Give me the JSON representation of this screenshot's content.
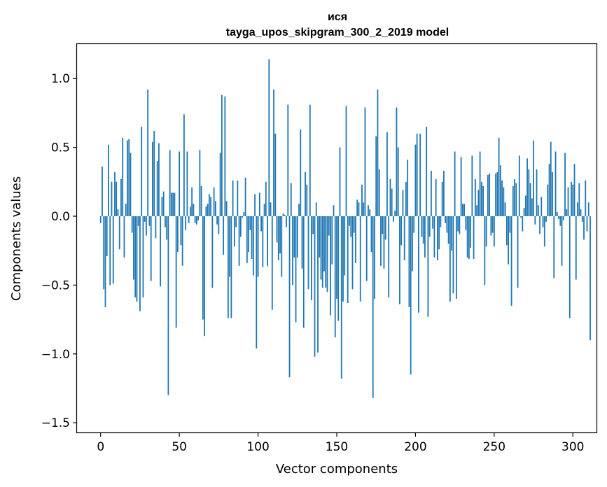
{
  "chart_data": {
    "type": "bar",
    "title": "ися",
    "subtitle": "tayga_upos_skipgram_300_2_2019 model",
    "xlabel": "Vector components",
    "ylabel": "Components values",
    "xlim": [
      -15,
      315
    ],
    "ylim": [
      -1.57,
      1.25
    ],
    "xticks": [
      0,
      50,
      100,
      150,
      200,
      250,
      300
    ],
    "xtick_labels": [
      "0",
      "50",
      "100",
      "150",
      "200",
      "250",
      "300"
    ],
    "yticks": [
      -1.5,
      -1.0,
      -0.5,
      0.0,
      0.5,
      1.0
    ],
    "ytick_labels": [
      "−1.5",
      "−1.0",
      "−0.5",
      "0.0",
      "0.5",
      "1.0"
    ],
    "bar_color": "#1f77b4",
    "grid": false,
    "values": [
      -0.05,
      0.36,
      -0.53,
      -0.66,
      -0.29,
      0.52,
      -0.5,
      0.25,
      -0.49,
      0.32,
      0.25,
      0.05,
      -0.24,
      0.27,
      0.57,
      -0.3,
      0.09,
      0.55,
      0.56,
      0.46,
      -0.12,
      -0.46,
      -0.59,
      -0.62,
      -0.07,
      -0.69,
      0.65,
      -0.59,
      -0.04,
      -0.14,
      0.92,
      -0.07,
      -0.47,
      0.54,
      0.62,
      -0.16,
      0.4,
      0.53,
      -0.51,
      0.14,
      0.18,
      -0.08,
      -0.17,
      -1.3,
      0.48,
      0.17,
      0.17,
      0.17,
      -0.81,
      -0.26,
      0.47,
      -0.21,
      -0.36,
      0.74,
      -0.1,
      0.47,
      -0.05,
      0.07,
      0.21,
      0.09,
      -0.05,
      -0.06,
      -0.03,
      0.48,
      0.22,
      -0.75,
      -0.87,
      0.07,
      0.09,
      0.16,
      0.14,
      -0.52,
      0.21,
      0.11,
      -0.06,
      -0.13,
      0.46,
      0.88,
      -0.28,
      0.87,
      0.11,
      -0.74,
      -0.44,
      -0.74,
      0.26,
      -0.22,
      -0.08,
      0.26,
      -0.36,
      -0.15,
      -0.01,
      0.03,
      0.28,
      -0.34,
      -0.26,
      -0.1,
      -0.31,
      -0.43,
      0.16,
      -0.96,
      -0.44,
      0.17,
      -0.11,
      -0.37,
      0.09,
      0.25,
      -0.36,
      1.14,
      0.1,
      -0.68,
      0.92,
      0.6,
      -0.19,
      -0.32,
      -0.27,
      -0.44,
      0.02,
      0.01,
      -0.08,
      0.81,
      -1.17,
      0.24,
      -0.5,
      -0.3,
      -0.77,
      -0.3,
      0.09,
      0.63,
      -0.38,
      -0.81,
      0.32,
      0.23,
      -0.53,
      0.81,
      -0.61,
      -0.13,
      -1.02,
      0.1,
      -0.99,
      -0.3,
      -0.46,
      -0.52,
      -0.4,
      -0.52,
      -0.55,
      -0.14,
      -0.72,
      -0.35,
      0.08,
      -0.88,
      -0.6,
      -0.76,
      0.5,
      -1.18,
      -0.62,
      -0.43,
      0.8,
      -0.63,
      -0.07,
      -0.15,
      -0.53,
      -0.12,
      -0.34,
      0.12,
      0.1,
      -0.62,
      0.23,
      0.1,
      0.79,
      -0.47,
      0.08,
      0.05,
      -0.26,
      -1.32,
      -0.6,
      0.58,
      0.92,
      0.34,
      -0.36,
      -0.13,
      -0.38,
      -0.17,
      0.61,
      -0.59,
      0.27,
      0.2,
      -0.04,
      0.04,
      0.79,
      0.5,
      -0.64,
      -0.21,
      0.19,
      -0.32,
      0.25,
      0.41,
      -0.66,
      -1.15,
      -0.4,
      -0.12,
      0.52,
      0.6,
      -0.7,
      0.6,
      -0.15,
      -0.2,
      -0.3,
      0.65,
      -0.73,
      -0.15,
      0.33,
      -0.09,
      -0.3,
      0.27,
      -0.32,
      -0.24,
      -0.08,
      0.25,
      0.33,
      -0.05,
      -0.12,
      -0.2,
      -0.62,
      -0.25,
      -0.56,
      0.47,
      -0.6,
      -0.11,
      -0.13,
      0.43,
      0.09,
      0.09,
      -0.1,
      -0.3,
      -0.31,
      -0.23,
      0.44,
      -0.31,
      0.27,
      0.08,
      0.19,
      0.47,
      0.25,
      0.22,
      -0.5,
      -0.22,
      0.3,
      0.31,
      -0.14,
      -0.12,
      -0.22,
      0.31,
      0.32,
      0.57,
      0.37,
      0.26,
      0.21,
      0.1,
      -0.21,
      -0.35,
      -0.12,
      -0.65,
      0.22,
      0.27,
      0.24,
      -0.52,
      0.44,
      -0.01,
      -0.11,
      0.06,
      0.15,
      0.42,
      0.34,
      0.24,
      0.13,
      0.55,
      -0.06,
      0.34,
      0.08,
      -0.13,
      0.14,
      -0.08,
      -0.22,
      -0.04,
      0.23,
      0.38,
      0.54,
      0.32,
      -0.45,
      0.47,
      0.03,
      -0.02,
      -0.07,
      -0.36,
      -0.03,
      0.46,
      0.05,
      0.21,
      -0.74,
      0.25,
      0.23,
      0.38,
      -0.46,
      0.1,
      0.24,
      0.05,
      -0.04,
      -0.17,
      0.26,
      -0.11,
      0.1,
      -0.9
    ]
  }
}
